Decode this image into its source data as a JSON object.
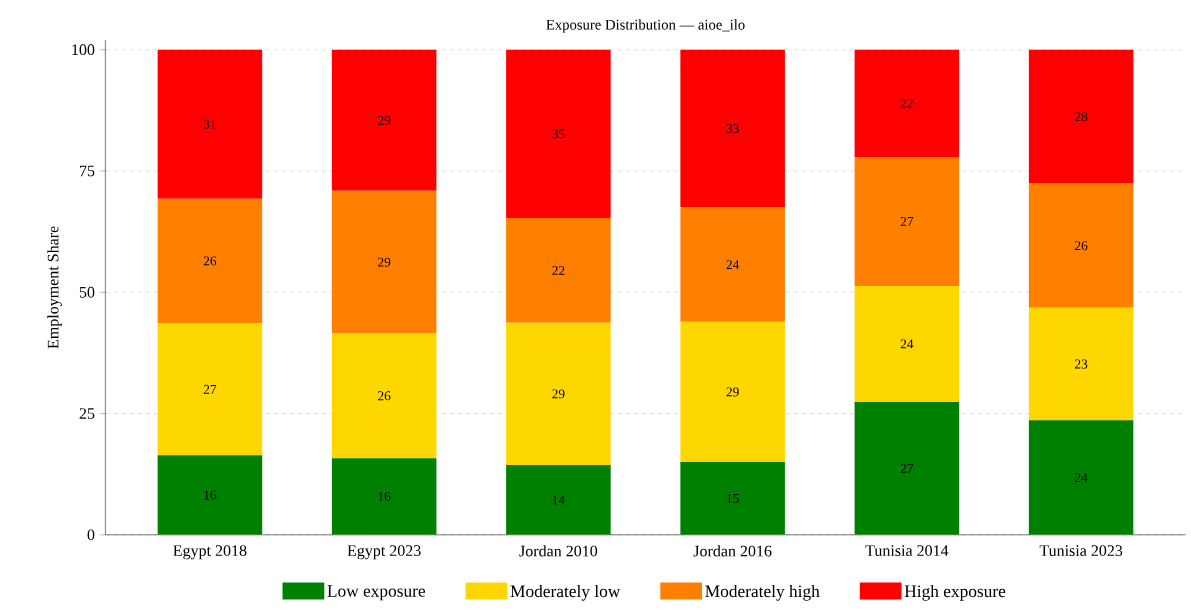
{
  "chart_data": {
    "type": "bar",
    "stacked": true,
    "title": "Exposure Distribution — aioe_ilo",
    "ylabel": "Employment Share",
    "categories": [
      "Egypt 2018",
      "Egypt 2023",
      "Jordan 2010",
      "Jordan 2016",
      "Tunisia 2014",
      "Tunisia 2023"
    ],
    "ylim": [
      0,
      102
    ],
    "yticks": [
      0,
      25,
      50,
      75,
      100
    ],
    "grid": "y",
    "legend": "bottom",
    "series": [
      {
        "name": "Low exposure",
        "color": "#008000",
        "values": [
          16.4,
          15.8,
          14.4,
          15.0,
          27.4,
          23.6
        ],
        "value_labels": [
          "16",
          "16",
          "14",
          "15",
          "27",
          "24"
        ]
      },
      {
        "name": "Moderately low",
        "color": "#ffd700",
        "values": [
          27.2,
          25.7,
          29.3,
          28.9,
          23.9,
          23.2
        ],
        "value_labels": [
          "27",
          "26",
          "29",
          "29",
          "24",
          "23"
        ]
      },
      {
        "name": "Moderately high",
        "color": "#ff8000",
        "values": [
          25.7,
          29.4,
          21.6,
          23.6,
          26.6,
          25.6
        ],
        "value_labels": [
          "26",
          "29",
          "22",
          "24",
          "27",
          "26"
        ]
      },
      {
        "name": "High exposure",
        "color": "#ff0000",
        "values": [
          30.7,
          29.1,
          34.7,
          32.5,
          22.1,
          27.6
        ],
        "value_labels": [
          "31",
          "29",
          "35",
          "33",
          "22",
          "28"
        ]
      }
    ]
  }
}
